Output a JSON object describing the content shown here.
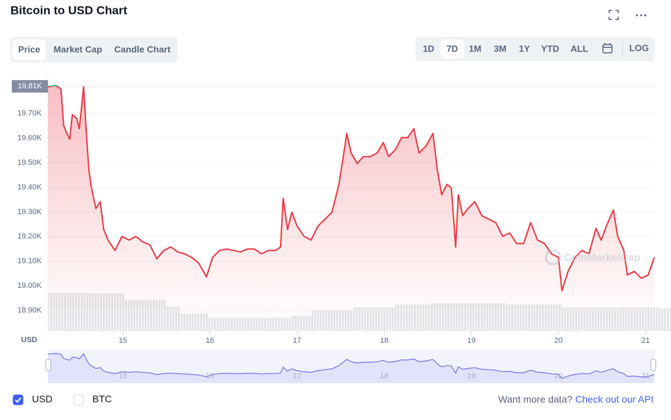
{
  "header": {
    "title": "Bitcoin to USD Chart"
  },
  "chart_tabs": [
    "Price",
    "Market Cap",
    "Candle Chart"
  ],
  "active_chart_tab": 0,
  "range_tabs": [
    "1D",
    "7D",
    "1M",
    "3M",
    "1Y",
    "YTD",
    "ALL"
  ],
  "active_range_tab": 1,
  "log_button": "LOG",
  "chart_data": {
    "type": "line",
    "y_axis_label": "USD",
    "watermark": "CoinMarketCap",
    "grid": true,
    "up_color": "#16c784",
    "reference_line": {
      "value": 19810,
      "label": "19.81K"
    },
    "xlim": [
      14.14,
      21.1
    ],
    "xticks": [
      15,
      16,
      17,
      18,
      19,
      20,
      21
    ],
    "ylim": [
      18820,
      19850
    ],
    "yticks": [
      {
        "value": 18900,
        "label": "18.90K"
      },
      {
        "value": 19000,
        "label": "19.00K"
      },
      {
        "value": 19100,
        "label": "19.10K"
      },
      {
        "value": 19200,
        "label": "19.20K"
      },
      {
        "value": 19300,
        "label": "19.30K"
      },
      {
        "value": 19400,
        "label": "19.40K"
      },
      {
        "value": 19500,
        "label": "19.50K"
      },
      {
        "value": 19600,
        "label": "19.60K"
      },
      {
        "value": 19700,
        "label": "19.70K"
      }
    ],
    "x": [
      14.14,
      14.23,
      14.29,
      14.32,
      14.35,
      14.39,
      14.42,
      14.47,
      14.5,
      14.55,
      14.58,
      14.61,
      14.64,
      14.69,
      14.74,
      14.78,
      14.83,
      14.91,
      14.99,
      15.07,
      15.15,
      15.23,
      15.31,
      15.39,
      15.47,
      15.55,
      15.63,
      15.71,
      15.79,
      15.87,
      15.96,
      16.03,
      16.11,
      16.19,
      16.27,
      16.35,
      16.43,
      16.51,
      16.59,
      16.67,
      16.75,
      16.81,
      16.84,
      16.89,
      16.94,
      17.0,
      17.08,
      17.16,
      17.24,
      17.32,
      17.4,
      17.48,
      17.53,
      17.57,
      17.62,
      17.69,
      17.76,
      17.84,
      17.92,
      17.99,
      18.05,
      18.13,
      18.2,
      18.27,
      18.34,
      18.4,
      18.48,
      18.56,
      18.61,
      18.66,
      18.72,
      18.77,
      18.82,
      18.85,
      18.9,
      18.96,
      19.04,
      19.12,
      19.2,
      19.28,
      19.36,
      19.44,
      19.52,
      19.6,
      19.68,
      19.76,
      19.84,
      19.92,
      20.0,
      20.04,
      20.11,
      20.19,
      20.27,
      20.35,
      20.43,
      20.49,
      20.55,
      20.63,
      20.68,
      20.75,
      20.79,
      20.87,
      20.95,
      21.03,
      21.1
    ],
    "series": [
      {
        "name": "USD",
        "color": "#ea3943",
        "values": [
          19808,
          19814,
          19799,
          19653,
          19624,
          19596,
          19695,
          19681,
          19638,
          19808,
          19624,
          19469,
          19398,
          19314,
          19342,
          19229,
          19186,
          19144,
          19201,
          19186,
          19201,
          19178,
          19167,
          19110,
          19144,
          19158,
          19138,
          19130,
          19116,
          19093,
          19037,
          19116,
          19144,
          19150,
          19144,
          19138,
          19150,
          19150,
          19130,
          19144,
          19144,
          19158,
          19356,
          19229,
          19299,
          19243,
          19201,
          19186,
          19243,
          19271,
          19299,
          19412,
          19525,
          19619,
          19540,
          19497,
          19525,
          19525,
          19540,
          19582,
          19525,
          19554,
          19602,
          19602,
          19638,
          19540,
          19568,
          19619,
          19469,
          19370,
          19412,
          19398,
          19158,
          19370,
          19285,
          19314,
          19342,
          19285,
          19271,
          19257,
          19201,
          19215,
          19172,
          19172,
          19257,
          19186,
          19172,
          19130,
          19116,
          18980,
          19059,
          19116,
          19144,
          19130,
          19234,
          19186,
          19243,
          19308,
          19201,
          19144,
          19045,
          19059,
          19031,
          19045,
          19116
        ]
      }
    ]
  },
  "footer": {
    "toggles": [
      {
        "label": "USD",
        "checked": true
      },
      {
        "label": "BTC",
        "checked": false
      }
    ],
    "prompt": "Want more data?",
    "link": "Check out our API"
  }
}
